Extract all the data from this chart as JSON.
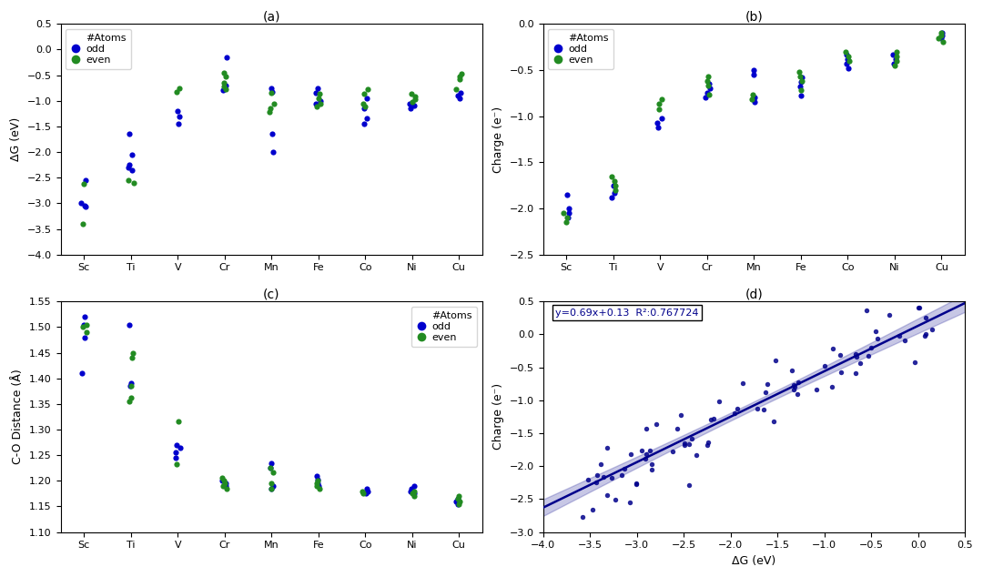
{
  "elements": [
    "Sc",
    "Ti",
    "V",
    "Cr",
    "Mn",
    "Fe",
    "Co",
    "Ni",
    "Cu"
  ],
  "panel_a": {
    "title": "(a)",
    "ylabel": "ΔG (eV)",
    "ylim": [
      -4.0,
      0.5
    ],
    "blue": {
      "Sc": [
        -2.55,
        -3.0,
        -3.05,
        -3.07
      ],
      "Ti": [
        -1.65,
        -2.05,
        -2.25,
        -2.3,
        -2.35
      ],
      "V": [
        -1.2,
        -1.3,
        -1.45
      ],
      "Cr": [
        -0.15,
        -0.7,
        -0.75,
        -0.8
      ],
      "Mn": [
        -0.75,
        -0.82,
        -1.65,
        -2.0
      ],
      "Fe": [
        -0.75,
        -0.85,
        -1.0,
        -1.05
      ],
      "Co": [
        -0.95,
        -1.15,
        -1.35,
        -1.45
      ],
      "Ni": [
        -1.05,
        -1.1,
        -1.15
      ],
      "Cu": [
        -0.85,
        -0.9,
        -0.95
      ]
    },
    "green": {
      "Sc": [
        -2.62,
        -3.4
      ],
      "Ti": [
        -2.6,
        -2.55
      ],
      "V": [
        -0.75,
        -0.82
      ],
      "Cr": [
        -0.45,
        -0.52,
        -0.65,
        -0.72,
        -0.77
      ],
      "Mn": [
        -0.85,
        -1.05,
        -1.15,
        -1.22
      ],
      "Fe": [
        -0.87,
        -0.95,
        -1.05,
        -1.12
      ],
      "Co": [
        -0.77,
        -0.87,
        -1.05,
        -1.12
      ],
      "Ni": [
        -0.87,
        -0.92,
        -0.97,
        -1.02
      ],
      "Cu": [
        -0.47,
        -0.52,
        -0.57,
        -0.77
      ]
    }
  },
  "panel_b": {
    "title": "(b)",
    "ylabel": "Charge (e⁻)",
    "ylim": [
      -2.5,
      0.0
    ],
    "blue": {
      "Sc": [
        -1.85,
        -2.0,
        -2.05,
        -2.1
      ],
      "Ti": [
        -1.75,
        -1.83,
        -1.88
      ],
      "V": [
        -1.02,
        -1.07,
        -1.12
      ],
      "Cr": [
        -0.65,
        -0.7,
        -0.75,
        -0.8
      ],
      "Mn": [
        -0.5,
        -0.55,
        -0.8,
        -0.85
      ],
      "Fe": [
        -0.58,
        -0.63,
        -0.68,
        -0.78
      ],
      "Co": [
        -0.33,
        -0.38,
        -0.43,
        -0.48
      ],
      "Ni": [
        -0.33,
        -0.38,
        -0.43
      ],
      "Cu": [
        -0.1,
        -0.13,
        -0.16
      ]
    },
    "green": {
      "Sc": [
        -2.05,
        -2.1,
        -2.15
      ],
      "Ti": [
        -1.65,
        -1.7,
        -1.75,
        -1.8
      ],
      "V": [
        -0.82,
        -0.87,
        -0.92
      ],
      "Cr": [
        -0.57,
        -0.62,
        -0.67,
        -0.77
      ],
      "Mn": [
        -0.77,
        -0.82
      ],
      "Fe": [
        -0.52,
        -0.57,
        -0.62,
        -0.72
      ],
      "Co": [
        -0.3,
        -0.35,
        -0.4
      ],
      "Ni": [
        -0.3,
        -0.35,
        -0.4,
        -0.45
      ],
      "Cu": [
        -0.1,
        -0.13,
        -0.16,
        -0.19
      ]
    }
  },
  "panel_c": {
    "title": "(c)",
    "ylabel": "C-O Distance (Å)",
    "ylim": [
      1.1,
      1.55
    ],
    "blue": {
      "Sc": [
        1.48,
        1.505,
        1.52,
        1.41
      ],
      "Ti": [
        1.505,
        1.39,
        1.385
      ],
      "V": [
        1.245,
        1.255,
        1.265,
        1.27
      ],
      "Cr": [
        1.19,
        1.195,
        1.2
      ],
      "Mn": [
        1.185,
        1.19,
        1.225,
        1.235
      ],
      "Fe": [
        1.19,
        1.196,
        1.202,
        1.21
      ],
      "Co": [
        1.175,
        1.18,
        1.185
      ],
      "Ni": [
        1.175,
        1.18,
        1.185,
        1.19
      ],
      "Cu": [
        1.155,
        1.16,
        1.165
      ]
    },
    "green": {
      "Sc": [
        1.49,
        1.5,
        1.505
      ],
      "Ti": [
        1.355,
        1.362,
        1.386,
        1.44,
        1.45
      ],
      "V": [
        1.232,
        1.316
      ],
      "Cr": [
        1.185,
        1.19,
        1.195,
        1.2,
        1.205
      ],
      "Mn": [
        1.185,
        1.196,
        1.216,
        1.226
      ],
      "Fe": [
        1.185,
        1.19,
        1.196,
        1.2
      ],
      "Co": [
        1.175,
        1.18
      ],
      "Ni": [
        1.17,
        1.175,
        1.18
      ],
      "Cu": [
        1.155,
        1.16,
        1.165,
        1.17
      ]
    }
  },
  "panel_d": {
    "title": "(d)",
    "xlabel": "ΔG (eV)",
    "ylabel": "Charge (e⁻)",
    "xlim": [
      -4.0,
      0.5
    ],
    "ylim": [
      -3.0,
      0.5
    ],
    "slope": 0.69,
    "intercept": 0.13,
    "annotation": "y=0.69x+0.13  R²:0.767724",
    "scatter_x": [
      -3.38,
      -3.32,
      -3.15,
      -3.05,
      -3.0,
      -3.0,
      -2.92,
      -2.85,
      -2.65,
      -2.58,
      -2.55,
      -2.5,
      -2.45,
      -2.38,
      -2.3,
      -2.28,
      -2.25,
      -2.22,
      -2.18,
      -2.12,
      -2.05,
      -1.98,
      -1.95,
      -1.88,
      -1.82,
      -1.75,
      -1.72,
      -1.65,
      -1.62,
      -1.55,
      -1.5,
      -1.48,
      -1.42,
      -1.38,
      -1.32,
      -1.28,
      -1.22,
      -1.18,
      -1.12,
      -1.08,
      -1.02,
      -0.98,
      -0.92,
      -0.88,
      -0.82,
      -0.78,
      -0.72,
      -0.68,
      -0.62,
      -0.58,
      -0.52,
      -0.48,
      -0.42,
      -0.38,
      -0.32,
      -0.28,
      -0.22,
      -0.18,
      -0.12,
      -0.08,
      -0.02,
      0.02,
      0.08,
      0.12
    ],
    "scatter_y": [
      -2.12,
      -2.08,
      -2.05,
      -2.02,
      -1.98,
      -1.95,
      -1.92,
      -1.88,
      -1.82,
      -1.78,
      -1.75,
      -1.72,
      -1.68,
      -1.62,
      -1.58,
      -1.55,
      -1.52,
      -1.48,
      -1.42,
      -1.38,
      -1.32,
      -1.28,
      -1.22,
      -1.18,
      -1.12,
      -1.08,
      -1.02,
      -0.98,
      -0.92,
      -0.88,
      -0.82,
      -0.78,
      -0.72,
      -0.68,
      -0.62,
      -0.58,
      -0.52,
      -0.72,
      -0.48,
      -0.45,
      -0.42,
      -0.38,
      -0.35,
      -0.48,
      -0.32,
      -0.28,
      -0.25,
      -0.22,
      -0.18,
      -0.55,
      -0.15,
      -0.12,
      -0.08,
      -0.35,
      -0.06,
      -0.04,
      -0.02,
      0.0,
      -0.02,
      -0.05,
      -0.08,
      -0.1,
      -0.12,
      -0.15
    ]
  },
  "blue_color": "#0000CD",
  "green_color": "#228B22",
  "line_color": "#00008B",
  "jitter": 0.06,
  "legend_loc_abc": "upper left"
}
